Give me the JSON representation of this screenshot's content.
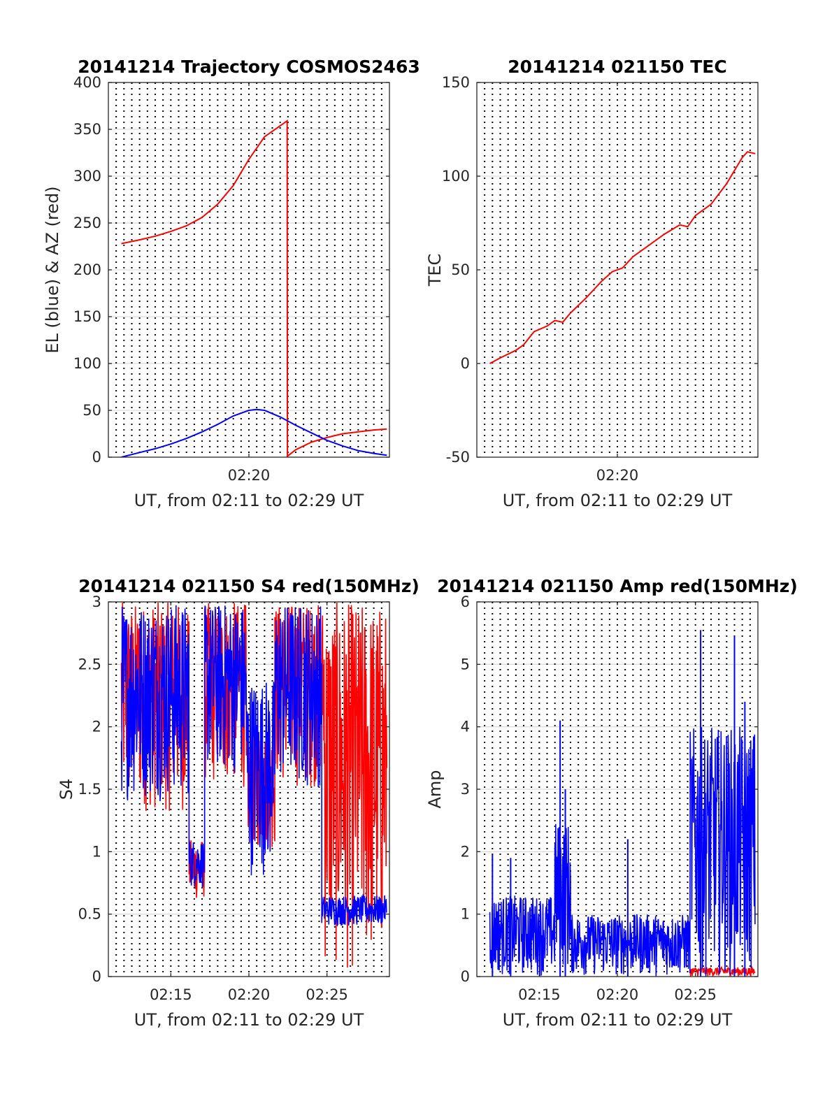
{
  "chart_data": [
    {
      "type": "line",
      "title": "20141214 Trajectory COSMOS2463",
      "xlabel": "UT, from 02:11 to 02:29 UT",
      "ylabel": "EL (blue) & AZ (red)",
      "xlim": [
        "02:11",
        "02:29"
      ],
      "ylim": [
        0,
        400
      ],
      "yticks": [
        0,
        50,
        100,
        150,
        200,
        250,
        300,
        350,
        400
      ],
      "xticks": [
        {
          "t": "02:20",
          "label": "02:20"
        }
      ],
      "grid": true,
      "series": [
        {
          "color": "#ff0000",
          "points": [
            [
              "02:11:50",
              228
            ],
            [
              "02:13:00",
              232
            ],
            [
              "02:14:00",
              236
            ],
            [
              "02:15:00",
              241
            ],
            [
              "02:16:00",
              247
            ],
            [
              "02:17:00",
              256
            ],
            [
              "02:18:00",
              270
            ],
            [
              "02:19:00",
              290
            ],
            [
              "02:20:00",
              318
            ],
            [
              "02:21:00",
              342
            ],
            [
              "02:22:27",
              359
            ],
            [
              "02:22:28",
              1
            ],
            [
              "02:23:00",
              8
            ],
            [
              "02:24:00",
              16
            ],
            [
              "02:25:00",
              21
            ],
            [
              "02:26:00",
              25
            ],
            [
              "02:27:00",
              27
            ],
            [
              "02:28:00",
              29
            ],
            [
              "02:28:50",
              30
            ]
          ]
        },
        {
          "color": "#0000ff",
          "points": [
            [
              "02:11:50",
              0
            ],
            [
              "02:13:00",
              5
            ],
            [
              "02:14:00",
              9
            ],
            [
              "02:15:00",
              14
            ],
            [
              "02:16:00",
              20
            ],
            [
              "02:17:00",
              27
            ],
            [
              "02:18:00",
              35
            ],
            [
              "02:19:00",
              44
            ],
            [
              "02:20:00",
              50
            ],
            [
              "02:20:30",
              51
            ],
            [
              "02:21:00",
              50
            ],
            [
              "02:22:00",
              43
            ],
            [
              "02:23:00",
              34
            ],
            [
              "02:24:00",
              26
            ],
            [
              "02:25:00",
              18
            ],
            [
              "02:26:00",
              12
            ],
            [
              "02:27:00",
              7
            ],
            [
              "02:28:00",
              4
            ],
            [
              "02:28:50",
              2
            ]
          ]
        }
      ]
    },
    {
      "type": "line",
      "title": "20141214 021150 TEC",
      "xlabel": "UT, from 02:11 to 02:29 UT",
      "ylabel": "TEC",
      "xlim": [
        "02:11",
        "02:29"
      ],
      "ylim": [
        -50,
        150
      ],
      "yticks": [
        -50,
        0,
        50,
        100,
        150
      ],
      "xticks": [
        {
          "t": "02:20",
          "label": "02:20"
        }
      ],
      "grid": true,
      "series": [
        {
          "color": "#ff0000",
          "points": [
            [
              "02:11:50",
              0
            ],
            [
              "02:12:30",
              3
            ],
            [
              "02:13:30",
              7
            ],
            [
              "02:14:00",
              10
            ],
            [
              "02:14:40",
              17
            ],
            [
              "02:15:30",
              20
            ],
            [
              "02:16:00",
              23
            ],
            [
              "02:16:30",
              22
            ],
            [
              "02:17:00",
              27
            ],
            [
              "02:18:00",
              35
            ],
            [
              "02:19:00",
              44
            ],
            [
              "02:19:40",
              49
            ],
            [
              "02:20:20",
              51
            ],
            [
              "02:21:00",
              57
            ],
            [
              "02:22:00",
              63
            ],
            [
              "02:23:00",
              69
            ],
            [
              "02:24:00",
              74
            ],
            [
              "02:24:30",
              73
            ],
            [
              "02:25:00",
              79
            ],
            [
              "02:26:00",
              85
            ],
            [
              "02:27:00",
              96
            ],
            [
              "02:28:00",
              110
            ],
            [
              "02:28:20",
              113
            ],
            [
              "02:28:50",
              112
            ]
          ]
        }
      ]
    },
    {
      "type": "line",
      "title": "20141214 021150 S4 red(150MHz)",
      "xlabel": "UT, from 02:11 to 02:29 UT",
      "ylabel": "S4",
      "xlim": [
        "02:11",
        "02:29"
      ],
      "ylim": [
        0,
        3
      ],
      "yticks": [
        0,
        0.5,
        1,
        1.5,
        2,
        2.5,
        3
      ],
      "xticks": [
        {
          "t": "02:15",
          "label": "02:15"
        },
        {
          "t": "02:20",
          "label": "02:20"
        },
        {
          "t": "02:25",
          "label": "02:25"
        }
      ],
      "grid": true,
      "series": [
        {
          "color": "#ff0000",
          "segments": [
            {
              "from": "02:11:50",
              "to": "02:16:10",
              "lo": 1.3,
              "hi": 3
            },
            {
              "from": "02:16:10",
              "to": "02:17:10",
              "lo": 0.6,
              "hi": 1.1
            },
            {
              "from": "02:17:10",
              "to": "02:19:50",
              "lo": 1.5,
              "hi": 3
            },
            {
              "from": "02:19:50",
              "to": "02:21:40",
              "lo": 1.0,
              "hi": 2.0
            },
            {
              "from": "02:21:40",
              "to": "02:24:50",
              "lo": 1.5,
              "hi": 3
            },
            {
              "from": "02:24:50",
              "to": "02:28:50",
              "lo": 0.0,
              "hi": 3
            }
          ]
        },
        {
          "color": "#0000ff",
          "segments": [
            {
              "from": "02:11:50",
              "to": "02:16:10",
              "lo": 1.4,
              "hi": 3
            },
            {
              "from": "02:16:10",
              "to": "02:17:10",
              "lo": 0.7,
              "hi": 1.1
            },
            {
              "from": "02:17:10",
              "to": "02:19:50",
              "lo": 1.6,
              "hi": 3
            },
            {
              "from": "02:19:50",
              "to": "02:21:40",
              "lo": 0.8,
              "hi": 2.4
            },
            {
              "from": "02:21:40",
              "to": "02:24:40",
              "lo": 1.5,
              "hi": 3
            },
            {
              "from": "02:24:40",
              "to": "02:28:50",
              "lo": 0.4,
              "hi": 0.65
            }
          ]
        }
      ]
    },
    {
      "type": "line",
      "title": "20141214 021150 Amp red(150MHz)",
      "xlabel": "UT, from 02:11 to 02:29 UT",
      "ylabel": "Amp",
      "xlim": [
        "02:11",
        "02:29"
      ],
      "ylim": [
        0,
        6
      ],
      "yticks": [
        0,
        1,
        2,
        3,
        4,
        5,
        6
      ],
      "xticks": [
        {
          "t": "02:15",
          "label": "02:15"
        },
        {
          "t": "02:20",
          "label": "02:20"
        },
        {
          "t": "02:25",
          "label": "02:25"
        }
      ],
      "grid": true,
      "series": [
        {
          "color": "#ff0000",
          "segments": [
            {
              "from": "02:24:40",
              "to": "02:28:50",
              "lo": 0.0,
              "hi": 0.15
            }
          ]
        },
        {
          "color": "#0000ff",
          "segments": [
            {
              "from": "02:11:50",
              "to": "02:16:00",
              "lo": 0.0,
              "hi": 1.3
            },
            {
              "from": "02:16:00",
              "to": "02:17:00",
              "lo": 0.0,
              "hi": 2.5
            },
            {
              "from": "02:17:00",
              "to": "02:24:40",
              "lo": 0.0,
              "hi": 1.0
            },
            {
              "from": "02:24:40",
              "to": "02:28:50",
              "lo": 0.0,
              "hi": 4.0
            }
          ],
          "peaks": [
            [
              "02:12:00",
              1.95
            ],
            [
              "02:13:10",
              1.9
            ],
            [
              "02:16:20",
              4.1
            ],
            [
              "02:16:40",
              3.0
            ],
            [
              "02:20:40",
              2.2
            ],
            [
              "02:25:20",
              5.55
            ],
            [
              "02:27:30",
              5.45
            ],
            [
              "02:28:10",
              4.4
            ]
          ]
        }
      ]
    }
  ]
}
